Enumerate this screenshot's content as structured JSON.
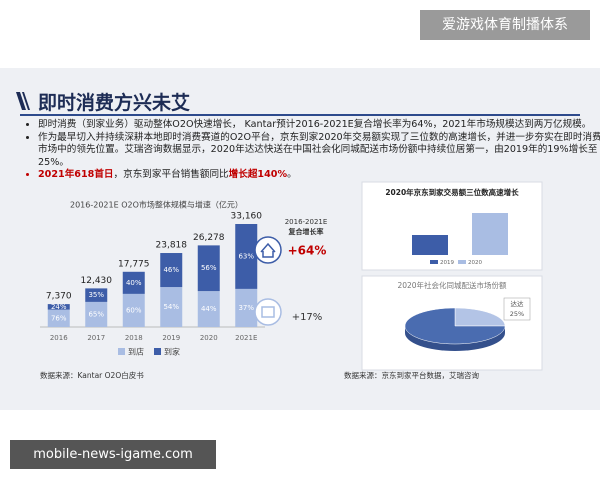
{
  "header": {
    "banner": "爱游戏体育制播体系"
  },
  "slide": {
    "title": "即时消费方兴未艾",
    "bullets": [
      {
        "parts": [
          "即时消费（到家业务）驱动整体O2O快速增长， Kantar预计2016-2021E复合增长率为64%，2021年市场规模达到两万亿规模。"
        ]
      },
      {
        "parts": [
          "作为最早切入并持续深耕本地即时消费赛道的O2O平台，京东到家2020年交易额实现了三位数的高速增长，并进一步夯实在即时消费市场中的领先位置。艾瑞咨询数据显示，2020年达达快送在中国社会化同城配送市场份额中持续位居第一，由2019年的19%增长至25%。"
        ]
      },
      {
        "parts": [
          "2021年618首日",
          "，京东到家平台销售额同比",
          "增长超140%",
          "。"
        ]
      }
    ],
    "sources": [
      "数据来源：Kantar O2O白皮书",
      "数据来源：京东到家平台数据，艾瑞咨询"
    ]
  },
  "watermark": "mobile-news-igame.com",
  "chart_data": [
    {
      "type": "bar",
      "title": "2016-2021E O2O市场整体规模与增速（亿元）",
      "categories": [
        "2016",
        "2017",
        "2018",
        "2019",
        "2020",
        "2021E"
      ],
      "values": [
        7370,
        12430,
        17775,
        23818,
        26278,
        33160
      ],
      "value_labels": [
        "7,370",
        "12,430",
        "17,775",
        "23,818",
        "26,278",
        "33,160"
      ],
      "series": [
        {
          "name": "到店",
          "color": "#a9bde3",
          "values": [
            76,
            65,
            60,
            54,
            44,
            37
          ],
          "value_labels": [
            "76%",
            "65%",
            "60%",
            "54%",
            "44%",
            "37%"
          ]
        },
        {
          "name": "到家",
          "color": "#3d5da8",
          "values": [
            24,
            35,
            40,
            46,
            56,
            63
          ],
          "value_labels": [
            "24%",
            "35%",
            "40%",
            "46%",
            "56%",
            "63%"
          ]
        }
      ],
      "annotations": [
        "2016-2021E",
        "复合增长率",
        "+64%",
        "+17%"
      ]
    },
    {
      "type": "bar",
      "title": "2020年京东到家交易额三位数高速增长",
      "categories": [
        "2019",
        "2020"
      ],
      "values": [
        100,
        210
      ],
      "colors": [
        "#3d5da8",
        "#a9bde3"
      ]
    },
    {
      "type": "pie",
      "title": "2020年社会化同城配送市场份额",
      "categories": [
        "达达",
        null
      ],
      "values": [
        25,
        75
      ],
      "value_labels": [
        "25%",
        null
      ],
      "colors": [
        "#b3c4e6",
        "#4a6cb0"
      ]
    }
  ]
}
